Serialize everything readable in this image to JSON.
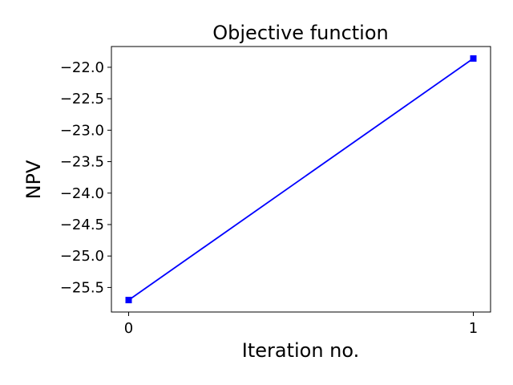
{
  "chart_data": {
    "type": "line",
    "title": "Objective function",
    "xlabel": "Iteration no.",
    "ylabel": "NPV",
    "x": [
      0,
      1
    ],
    "series": [
      {
        "values": [
          -25.7,
          -21.86
        ],
        "color": "#0000ff",
        "marker": "square"
      }
    ],
    "xlim": [
      -0.05,
      1.05
    ],
    "ylim": [
      -25.89,
      -21.67
    ],
    "xticks": [
      0,
      1
    ],
    "xtick_labels": [
      "0",
      "1"
    ],
    "yticks": [
      -25.5,
      -25.0,
      -24.5,
      -24.0,
      -23.5,
      -23.0,
      -22.5,
      -22.0
    ],
    "ytick_labels": [
      "−25.5",
      "−25.0",
      "−24.5",
      "−24.0",
      "−23.5",
      "−23.0",
      "−22.5",
      "−22.0"
    ],
    "grid": false,
    "legend": false
  }
}
